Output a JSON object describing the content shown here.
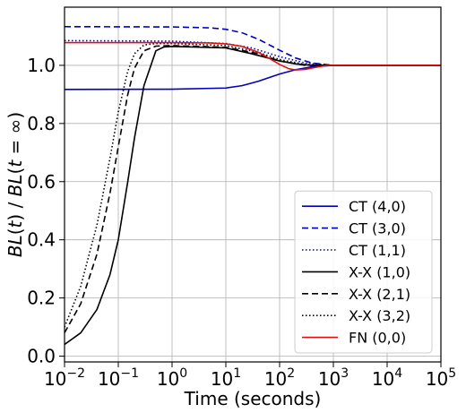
{
  "chart_data": {
    "type": "line",
    "xlabel": "Time (seconds)",
    "ylabel": "BL(t) / BL(t = ∞)",
    "xscale": "log",
    "xlim": [
      0.01,
      100000
    ],
    "ylim": [
      -0.02,
      1.2
    ],
    "grid": true,
    "legend_position": "bottom-right",
    "x_ticks": [
      {
        "base": "10",
        "exp": "−2",
        "value": 0.01
      },
      {
        "base": "10",
        "exp": "−1",
        "value": 0.1
      },
      {
        "base": "10",
        "exp": "0",
        "value": 1
      },
      {
        "base": "10",
        "exp": "1",
        "value": 10
      },
      {
        "base": "10",
        "exp": "2",
        "value": 100
      },
      {
        "base": "10",
        "exp": "3",
        "value": 1000
      },
      {
        "base": "10",
        "exp": "4",
        "value": 10000
      },
      {
        "base": "10",
        "exp": "5",
        "value": 100000
      }
    ],
    "y_ticks": [
      {
        "label": "0.0",
        "value": 0.0
      },
      {
        "label": "0.2",
        "value": 0.2
      },
      {
        "label": "0.4",
        "value": 0.4
      },
      {
        "label": "0.6",
        "value": 0.6
      },
      {
        "label": "0.8",
        "value": 0.8
      },
      {
        "label": "1.0",
        "value": 1.0
      }
    ],
    "series": [
      {
        "name": "CT (4,0)",
        "color": "#0000bb",
        "dash": "solid",
        "x": [
          0.01,
          1,
          10,
          20,
          40,
          100,
          200,
          400,
          1000,
          100000
        ],
        "y": [
          0.917,
          0.918,
          0.922,
          0.93,
          0.945,
          0.97,
          0.985,
          0.995,
          1.0,
          1.0
        ]
      },
      {
        "name": "CT (3,0)",
        "color": "#0000bb",
        "dash": "dashed",
        "x": [
          0.01,
          1,
          5,
          10,
          20,
          40,
          100,
          200,
          400,
          1000,
          100000
        ],
        "y": [
          1.133,
          1.132,
          1.129,
          1.124,
          1.112,
          1.09,
          1.052,
          1.025,
          1.008,
          1.0,
          1.0
        ]
      },
      {
        "name": "CT (1,1)",
        "color": "#0000bb",
        "dash": "dotted",
        "x": [
          0.01,
          1,
          10,
          30,
          100,
          300,
          1000,
          100000
        ],
        "y": [
          1.085,
          1.083,
          1.075,
          1.06,
          1.03,
          1.008,
          1.0,
          1.0
        ]
      },
      {
        "name": "X-X (1,0)",
        "color": "#000000",
        "dash": "solid",
        "x": [
          0.01,
          0.02,
          0.04,
          0.07,
          0.1,
          0.15,
          0.2,
          0.3,
          0.5,
          0.7,
          1,
          10,
          30,
          100,
          200,
          400,
          1000,
          100000
        ],
        "y": [
          0.04,
          0.08,
          0.16,
          0.28,
          0.4,
          0.6,
          0.75,
          0.93,
          1.05,
          1.063,
          1.065,
          1.06,
          1.04,
          1.015,
          1.005,
          1.0,
          1.0,
          1.0
        ]
      },
      {
        "name": "X-X (2,1)",
        "color": "#000000",
        "dash": "dashed",
        "x": [
          0.01,
          0.02,
          0.04,
          0.07,
          0.1,
          0.15,
          0.2,
          0.3,
          0.5,
          1,
          10,
          40,
          100,
          300,
          1000,
          100000
        ],
        "y": [
          0.08,
          0.18,
          0.35,
          0.56,
          0.72,
          0.9,
          0.99,
          1.05,
          1.066,
          1.068,
          1.062,
          1.04,
          1.015,
          1.0,
          1.0,
          1.0
        ]
      },
      {
        "name": "X-X (3,2)",
        "color": "#000000",
        "dash": "dotted",
        "x": [
          0.01,
          0.02,
          0.04,
          0.07,
          0.1,
          0.15,
          0.2,
          0.3,
          0.5,
          1,
          10,
          40,
          100,
          300,
          1000,
          100000
        ],
        "y": [
          0.1,
          0.24,
          0.45,
          0.68,
          0.84,
          0.98,
          1.04,
          1.07,
          1.075,
          1.075,
          1.068,
          1.045,
          1.02,
          1.003,
          1.0,
          1.0
        ]
      },
      {
        "name": "FN (0,0)",
        "color": "#dd1111",
        "dash": "solid",
        "x": [
          0.01,
          1,
          5,
          10,
          20,
          40,
          70,
          100,
          150,
          200,
          300,
          500,
          700,
          1000,
          100000
        ],
        "y": [
          1.078,
          1.078,
          1.077,
          1.074,
          1.065,
          1.045,
          1.02,
          1.003,
          0.988,
          0.984,
          0.986,
          0.994,
          0.999,
          1.0,
          1.0
        ]
      }
    ]
  }
}
